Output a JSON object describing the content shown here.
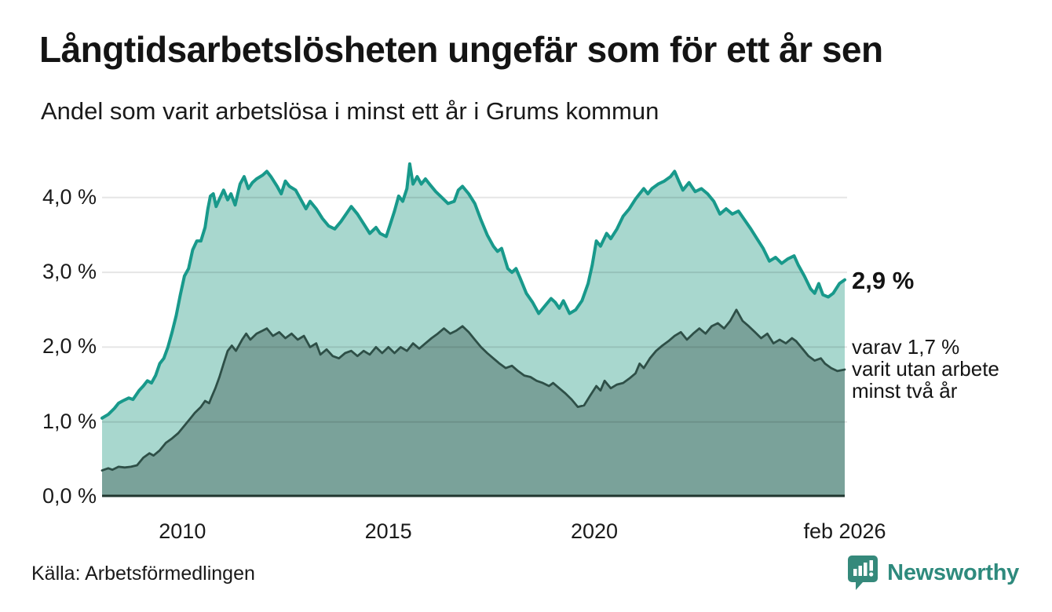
{
  "header": {
    "title": "Långtidsarbetslösheten ungefär som för ett år sen",
    "subtitle": "Andel som varit arbetslösa i minst ett år i Grums kommun"
  },
  "chart_data": {
    "type": "area",
    "title": "Långtidsarbetslösheten ungefär som för ett år sen",
    "subtitle": "Andel som varit arbetslösa i minst ett år i Grums kommun",
    "unit": "%",
    "x_domain": [
      2008.05,
      2026.08
    ],
    "ylim": [
      0,
      4.55
    ],
    "grid": true,
    "y_ticks": [
      {
        "value": 0,
        "label": "0,0 %"
      },
      {
        "value": 1,
        "label": "1,0 %"
      },
      {
        "value": 2,
        "label": "2,0 %"
      },
      {
        "value": 3,
        "label": "3,0 %"
      },
      {
        "value": 4,
        "label": "4,0 %"
      }
    ],
    "x_ticks": [
      {
        "x": 2010,
        "label": "2010"
      },
      {
        "x": 2015,
        "label": "2015"
      },
      {
        "x": 2020,
        "label": "2020"
      },
      {
        "x": 2026.08,
        "label": "feb 2026"
      }
    ],
    "series": [
      {
        "name": "Andel som varit arbetslösa i minst ett år",
        "color": "#18998b",
        "fill": "#a8d7ce",
        "latest_value": 2.9,
        "points": [
          [
            2008.05,
            1.05
          ],
          [
            2008.2,
            1.1
          ],
          [
            2008.35,
            1.18
          ],
          [
            2008.45,
            1.25
          ],
          [
            2008.55,
            1.28
          ],
          [
            2008.7,
            1.32
          ],
          [
            2008.8,
            1.3
          ],
          [
            2008.95,
            1.42
          ],
          [
            2009.05,
            1.48
          ],
          [
            2009.15,
            1.55
          ],
          [
            2009.25,
            1.52
          ],
          [
            2009.35,
            1.62
          ],
          [
            2009.45,
            1.78
          ],
          [
            2009.55,
            1.85
          ],
          [
            2009.65,
            2.0
          ],
          [
            2009.75,
            2.2
          ],
          [
            2009.85,
            2.42
          ],
          [
            2009.95,
            2.7
          ],
          [
            2010.05,
            2.95
          ],
          [
            2010.15,
            3.05
          ],
          [
            2010.25,
            3.3
          ],
          [
            2010.35,
            3.42
          ],
          [
            2010.45,
            3.42
          ],
          [
            2010.55,
            3.6
          ],
          [
            2010.62,
            3.85
          ],
          [
            2010.68,
            4.02
          ],
          [
            2010.75,
            4.05
          ],
          [
            2010.82,
            3.88
          ],
          [
            2010.9,
            3.98
          ],
          [
            2011.0,
            4.1
          ],
          [
            2011.1,
            3.97
          ],
          [
            2011.18,
            4.05
          ],
          [
            2011.28,
            3.9
          ],
          [
            2011.4,
            4.18
          ],
          [
            2011.5,
            4.28
          ],
          [
            2011.6,
            4.12
          ],
          [
            2011.7,
            4.2
          ],
          [
            2011.8,
            4.25
          ],
          [
            2011.95,
            4.3
          ],
          [
            2012.05,
            4.35
          ],
          [
            2012.15,
            4.28
          ],
          [
            2012.3,
            4.15
          ],
          [
            2012.4,
            4.05
          ],
          [
            2012.5,
            4.22
          ],
          [
            2012.6,
            4.15
          ],
          [
            2012.75,
            4.1
          ],
          [
            2012.9,
            3.95
          ],
          [
            2013.0,
            3.85
          ],
          [
            2013.1,
            3.95
          ],
          [
            2013.25,
            3.85
          ],
          [
            2013.4,
            3.72
          ],
          [
            2013.55,
            3.62
          ],
          [
            2013.7,
            3.58
          ],
          [
            2013.85,
            3.68
          ],
          [
            2014.0,
            3.8
          ],
          [
            2014.1,
            3.88
          ],
          [
            2014.25,
            3.78
          ],
          [
            2014.4,
            3.65
          ],
          [
            2014.55,
            3.52
          ],
          [
            2014.7,
            3.6
          ],
          [
            2014.8,
            3.52
          ],
          [
            2014.95,
            3.48
          ],
          [
            2015.05,
            3.65
          ],
          [
            2015.15,
            3.82
          ],
          [
            2015.25,
            4.02
          ],
          [
            2015.35,
            3.95
          ],
          [
            2015.45,
            4.12
          ],
          [
            2015.52,
            4.45
          ],
          [
            2015.6,
            4.18
          ],
          [
            2015.7,
            4.28
          ],
          [
            2015.8,
            4.18
          ],
          [
            2015.9,
            4.25
          ],
          [
            2016.0,
            4.18
          ],
          [
            2016.15,
            4.08
          ],
          [
            2016.3,
            4.0
          ],
          [
            2016.45,
            3.92
          ],
          [
            2016.6,
            3.95
          ],
          [
            2016.7,
            4.1
          ],
          [
            2016.8,
            4.15
          ],
          [
            2016.95,
            4.05
          ],
          [
            2017.1,
            3.92
          ],
          [
            2017.25,
            3.7
          ],
          [
            2017.4,
            3.5
          ],
          [
            2017.55,
            3.35
          ],
          [
            2017.65,
            3.28
          ],
          [
            2017.75,
            3.32
          ],
          [
            2017.9,
            3.05
          ],
          [
            2018.0,
            3.0
          ],
          [
            2018.1,
            3.05
          ],
          [
            2018.2,
            2.92
          ],
          [
            2018.35,
            2.72
          ],
          [
            2018.5,
            2.6
          ],
          [
            2018.65,
            2.45
          ],
          [
            2018.8,
            2.55
          ],
          [
            2018.95,
            2.65
          ],
          [
            2019.05,
            2.6
          ],
          [
            2019.15,
            2.52
          ],
          [
            2019.25,
            2.62
          ],
          [
            2019.4,
            2.45
          ],
          [
            2019.55,
            2.5
          ],
          [
            2019.7,
            2.62
          ],
          [
            2019.85,
            2.85
          ],
          [
            2019.95,
            3.1
          ],
          [
            2020.05,
            3.42
          ],
          [
            2020.15,
            3.35
          ],
          [
            2020.3,
            3.52
          ],
          [
            2020.4,
            3.45
          ],
          [
            2020.55,
            3.58
          ],
          [
            2020.7,
            3.75
          ],
          [
            2020.85,
            3.85
          ],
          [
            2021.0,
            3.98
          ],
          [
            2021.1,
            4.05
          ],
          [
            2021.2,
            4.12
          ],
          [
            2021.3,
            4.05
          ],
          [
            2021.4,
            4.12
          ],
          [
            2021.55,
            4.18
          ],
          [
            2021.7,
            4.22
          ],
          [
            2021.85,
            4.28
          ],
          [
            2021.95,
            4.35
          ],
          [
            2022.05,
            4.22
          ],
          [
            2022.15,
            4.1
          ],
          [
            2022.3,
            4.2
          ],
          [
            2022.45,
            4.08
          ],
          [
            2022.6,
            4.12
          ],
          [
            2022.75,
            4.05
          ],
          [
            2022.9,
            3.95
          ],
          [
            2023.05,
            3.78
          ],
          [
            2023.2,
            3.85
          ],
          [
            2023.35,
            3.78
          ],
          [
            2023.5,
            3.82
          ],
          [
            2023.65,
            3.7
          ],
          [
            2023.8,
            3.58
          ],
          [
            2023.95,
            3.45
          ],
          [
            2024.1,
            3.32
          ],
          [
            2024.25,
            3.15
          ],
          [
            2024.4,
            3.2
          ],
          [
            2024.55,
            3.12
          ],
          [
            2024.7,
            3.18
          ],
          [
            2024.85,
            3.22
          ],
          [
            2024.95,
            3.1
          ],
          [
            2025.1,
            2.95
          ],
          [
            2025.25,
            2.78
          ],
          [
            2025.35,
            2.72
          ],
          [
            2025.45,
            2.85
          ],
          [
            2025.55,
            2.7
          ],
          [
            2025.68,
            2.67
          ],
          [
            2025.8,
            2.72
          ],
          [
            2025.95,
            2.85
          ],
          [
            2026.08,
            2.9
          ]
        ]
      },
      {
        "name": "varav varit utan arbete minst två år",
        "color": "#2e4f47",
        "fill": "#7aa29a",
        "latest_value": 1.7,
        "points": [
          [
            2008.05,
            0.35
          ],
          [
            2008.2,
            0.38
          ],
          [
            2008.3,
            0.36
          ],
          [
            2008.45,
            0.4
          ],
          [
            2008.6,
            0.39
          ],
          [
            2008.75,
            0.4
          ],
          [
            2008.9,
            0.42
          ],
          [
            2009.05,
            0.52
          ],
          [
            2009.2,
            0.58
          ],
          [
            2009.3,
            0.55
          ],
          [
            2009.45,
            0.62
          ],
          [
            2009.6,
            0.72
          ],
          [
            2009.75,
            0.78
          ],
          [
            2009.9,
            0.85
          ],
          [
            2010.05,
            0.95
          ],
          [
            2010.2,
            1.05
          ],
          [
            2010.3,
            1.12
          ],
          [
            2010.45,
            1.2
          ],
          [
            2010.55,
            1.28
          ],
          [
            2010.65,
            1.25
          ],
          [
            2010.7,
            1.32
          ],
          [
            2010.8,
            1.45
          ],
          [
            2010.9,
            1.6
          ],
          [
            2011.0,
            1.78
          ],
          [
            2011.1,
            1.95
          ],
          [
            2011.2,
            2.02
          ],
          [
            2011.3,
            1.95
          ],
          [
            2011.45,
            2.1
          ],
          [
            2011.55,
            2.18
          ],
          [
            2011.65,
            2.1
          ],
          [
            2011.8,
            2.18
          ],
          [
            2011.95,
            2.22
          ],
          [
            2012.05,
            2.25
          ],
          [
            2012.2,
            2.15
          ],
          [
            2012.35,
            2.2
          ],
          [
            2012.5,
            2.12
          ],
          [
            2012.65,
            2.18
          ],
          [
            2012.8,
            2.1
          ],
          [
            2012.95,
            2.15
          ],
          [
            2013.1,
            2.0
          ],
          [
            2013.25,
            2.05
          ],
          [
            2013.35,
            1.9
          ],
          [
            2013.5,
            1.97
          ],
          [
            2013.65,
            1.88
          ],
          [
            2013.8,
            1.85
          ],
          [
            2013.95,
            1.92
          ],
          [
            2014.1,
            1.95
          ],
          [
            2014.25,
            1.88
          ],
          [
            2014.4,
            1.95
          ],
          [
            2014.55,
            1.9
          ],
          [
            2014.7,
            2.0
          ],
          [
            2014.85,
            1.92
          ],
          [
            2015.0,
            2.0
          ],
          [
            2015.15,
            1.92
          ],
          [
            2015.3,
            2.0
          ],
          [
            2015.45,
            1.95
          ],
          [
            2015.6,
            2.05
          ],
          [
            2015.75,
            1.98
          ],
          [
            2015.9,
            2.05
          ],
          [
            2016.05,
            2.12
          ],
          [
            2016.2,
            2.18
          ],
          [
            2016.35,
            2.25
          ],
          [
            2016.5,
            2.18
          ],
          [
            2016.65,
            2.22
          ],
          [
            2016.8,
            2.28
          ],
          [
            2016.95,
            2.2
          ],
          [
            2017.1,
            2.1
          ],
          [
            2017.25,
            2.0
          ],
          [
            2017.4,
            1.92
          ],
          [
            2017.55,
            1.85
          ],
          [
            2017.7,
            1.78
          ],
          [
            2017.85,
            1.72
          ],
          [
            2018.0,
            1.75
          ],
          [
            2018.15,
            1.68
          ],
          [
            2018.3,
            1.62
          ],
          [
            2018.45,
            1.6
          ],
          [
            2018.6,
            1.55
          ],
          [
            2018.75,
            1.52
          ],
          [
            2018.9,
            1.48
          ],
          [
            2019.0,
            1.52
          ],
          [
            2019.15,
            1.45
          ],
          [
            2019.3,
            1.38
          ],
          [
            2019.45,
            1.3
          ],
          [
            2019.6,
            1.2
          ],
          [
            2019.75,
            1.22
          ],
          [
            2019.9,
            1.35
          ],
          [
            2020.05,
            1.48
          ],
          [
            2020.15,
            1.42
          ],
          [
            2020.25,
            1.55
          ],
          [
            2020.4,
            1.45
          ],
          [
            2020.55,
            1.5
          ],
          [
            2020.7,
            1.52
          ],
          [
            2020.85,
            1.58
          ],
          [
            2021.0,
            1.65
          ],
          [
            2021.1,
            1.78
          ],
          [
            2021.2,
            1.72
          ],
          [
            2021.35,
            1.85
          ],
          [
            2021.5,
            1.95
          ],
          [
            2021.65,
            2.02
          ],
          [
            2021.8,
            2.08
          ],
          [
            2021.95,
            2.15
          ],
          [
            2022.1,
            2.2
          ],
          [
            2022.25,
            2.1
          ],
          [
            2022.4,
            2.18
          ],
          [
            2022.55,
            2.25
          ],
          [
            2022.7,
            2.18
          ],
          [
            2022.85,
            2.28
          ],
          [
            2023.0,
            2.32
          ],
          [
            2023.15,
            2.25
          ],
          [
            2023.3,
            2.35
          ],
          [
            2023.45,
            2.5
          ],
          [
            2023.6,
            2.35
          ],
          [
            2023.75,
            2.28
          ],
          [
            2023.9,
            2.2
          ],
          [
            2024.05,
            2.12
          ],
          [
            2024.2,
            2.18
          ],
          [
            2024.35,
            2.05
          ],
          [
            2024.5,
            2.1
          ],
          [
            2024.65,
            2.05
          ],
          [
            2024.8,
            2.12
          ],
          [
            2024.9,
            2.08
          ],
          [
            2025.05,
            1.98
          ],
          [
            2025.2,
            1.88
          ],
          [
            2025.35,
            1.82
          ],
          [
            2025.5,
            1.85
          ],
          [
            2025.6,
            1.78
          ],
          [
            2025.75,
            1.72
          ],
          [
            2025.9,
            1.68
          ],
          [
            2026.08,
            1.7
          ]
        ]
      }
    ],
    "annotations": {
      "latest_total": "2,9 %",
      "latest_two_year_lines": [
        "varav 1,7 %",
        "varit utan arbete",
        "minst två år"
      ]
    },
    "legend_position": "right-annotations"
  },
  "colors": {
    "series1_line": "#18998b",
    "series1_fill": "#a8d7ce",
    "series2_line": "#2e4f47",
    "series2_fill": "#7aa29a",
    "baseline": "#20362f",
    "gridline": "rgba(0,0,0,0.10)",
    "brand_teal": "#2e8a7d"
  },
  "footer": {
    "source": "Källa: Arbetsförmedlingen",
    "brand": "Newsworthy"
  }
}
